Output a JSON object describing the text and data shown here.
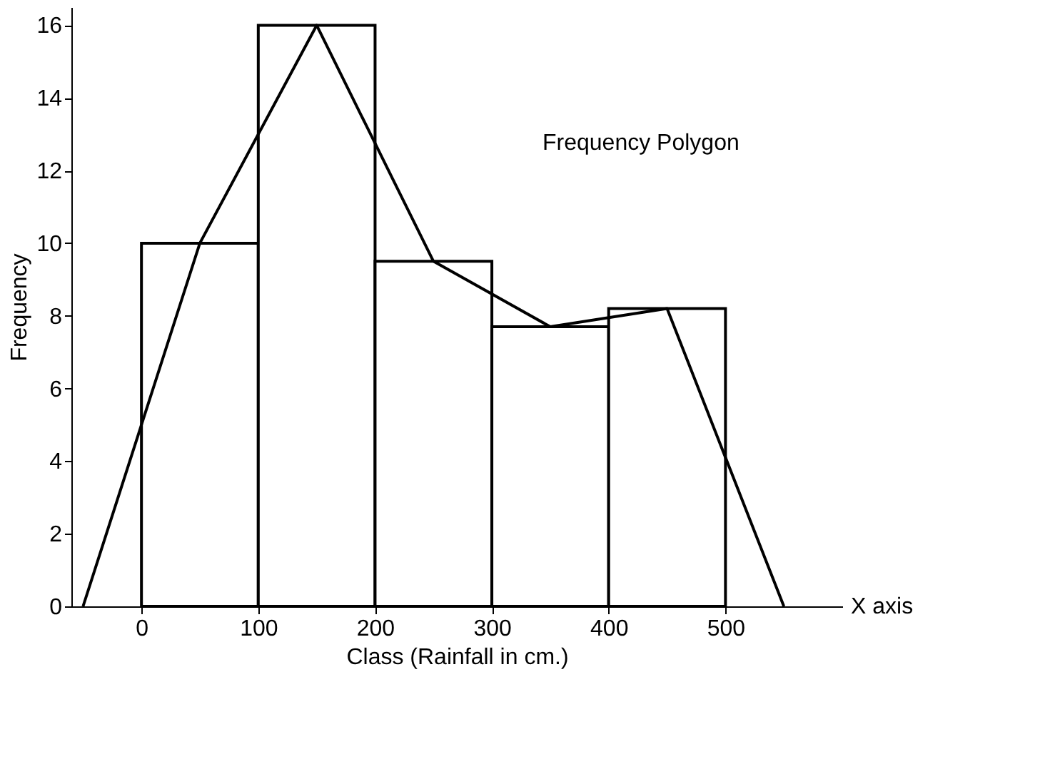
{
  "chart_data": {
    "type": "histogram",
    "xlabel": "Class (Rainfall in cm.)",
    "ylabel": "Frequency",
    "bins": [
      0,
      100,
      200,
      300,
      400,
      500
    ],
    "values": [
      10,
      16,
      9.5,
      7.7,
      8.2
    ],
    "color": "#ffffff",
    "series": [
      {
        "type": "line",
        "x": [
          -50,
          50,
          150,
          250,
          350,
          450,
          550
        ],
        "values": [
          0,
          10,
          16,
          9.5,
          7.7,
          8.2,
          0
        ],
        "color": "#000000"
      }
    ],
    "xlim": [
      -60,
      600
    ],
    "xticks": [
      0,
      100,
      200,
      300,
      400,
      500
    ],
    "ylim": [
      0,
      16.5
    ],
    "yticks": [
      0,
      2,
      4,
      6,
      8,
      10,
      12,
      14,
      16
    ],
    "grid": false,
    "annotations": [
      "Frequency Polygon",
      "X axis"
    ]
  }
}
